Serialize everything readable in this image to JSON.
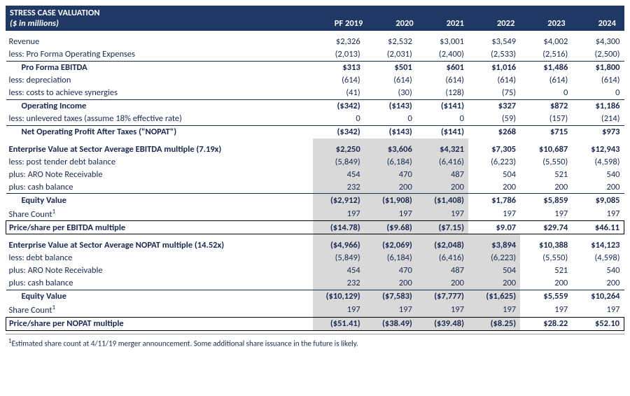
{
  "header": {
    "title": "STRESS CASE VALUATION",
    "subtitle": "($ in millions)",
    "columns": [
      "PF 2019",
      "2020",
      "2021",
      "2022",
      "2023",
      "2024"
    ]
  },
  "rows": [
    {
      "label": "Revenue",
      "vals": [
        "$2,326",
        "$2,532",
        "$3,001",
        "$3,549",
        "$4,002",
        "$4,300"
      ],
      "cls": "section-gap"
    },
    {
      "label": "less: Pro Forma Operating Expenses",
      "vals": [
        "(2,013)",
        "(2,031)",
        "(2,400)",
        "(2,533)",
        "(2,516)",
        "(2,500)"
      ]
    },
    {
      "label": "Pro Forma EBITDA",
      "vals": [
        "$313",
        "$501",
        "$601",
        "$1,016",
        "$1,486",
        "$1,800"
      ],
      "cls": "bold topline",
      "indent": true
    },
    {
      "label": "less: depreciation",
      "vals": [
        "(614)",
        "(614)",
        "(614)",
        "(614)",
        "(614)",
        "(614)"
      ]
    },
    {
      "label": "less: costs to achieve synergies",
      "vals": [
        "(41)",
        "(30)",
        "(128)",
        "(75)",
        "0",
        "0"
      ]
    },
    {
      "label": "Operating Income",
      "vals": [
        "($342)",
        "($143)",
        "($141)",
        "$327",
        "$872",
        "$1,186"
      ],
      "cls": "bold topline",
      "indent": true
    },
    {
      "label": "less: unlevered taxes (assume 18% effective rate)",
      "vals": [
        "0",
        "0",
        "0",
        "(59)",
        "(157)",
        "(214)"
      ]
    },
    {
      "label": "Net Operating Profit After Taxes (\"NOPAT\")",
      "vals": [
        "($342)",
        "($143)",
        "($141)",
        "$268",
        "$715",
        "$973"
      ],
      "cls": "bold topline",
      "indent": true
    },
    {
      "label": "Enterprise Value at Sector Average EBITDA multiple (7.19x)",
      "vals": [
        "$2,250",
        "$3,606",
        "$4,321",
        "$7,305",
        "$10,687",
        "$12,943"
      ],
      "cls": "bold section-gap",
      "hl": 3
    },
    {
      "label": "less: post tender debt balance",
      "vals": [
        "(5,849)",
        "(6,184)",
        "(6,416)",
        "(6,223)",
        "(5,550)",
        "(4,598)"
      ],
      "hl": 3
    },
    {
      "label": "plus: ARO Note Receivable",
      "vals": [
        "454",
        "470",
        "487",
        "504",
        "521",
        "540"
      ],
      "hl": 3
    },
    {
      "label": "plus: cash balance",
      "vals": [
        "232",
        "200",
        "200",
        "200",
        "200",
        "200"
      ],
      "hl": 3
    },
    {
      "label": "Equity Value",
      "vals": [
        "($2,912)",
        "($1,908)",
        "($1,408)",
        "$1,786",
        "$5,859",
        "$9,085"
      ],
      "cls": "bold topline",
      "indent": true,
      "hl": 3
    },
    {
      "label": "Share Count",
      "sup": "1",
      "vals": [
        "197",
        "197",
        "197",
        "197",
        "197",
        "197"
      ],
      "hl": 3
    },
    {
      "label": "Price/share per EBITDA multiple",
      "vals": [
        "($14.78)",
        "($9.68)",
        "($7.15)",
        "$9.07",
        "$29.74",
        "$46.11"
      ],
      "cls": "bold box",
      "hl": 3
    },
    {
      "label": "Enterprise Value at Sector Average NOPAT multiple (14.52x)",
      "vals": [
        "($4,966)",
        "($2,069)",
        "($2,048)",
        "$3,894",
        "$10,388",
        "$14,123"
      ],
      "cls": "bold section-gap",
      "hl": 4
    },
    {
      "label": "less: debt balance",
      "vals": [
        "(5,849)",
        "(6,184)",
        "(6,416)",
        "(6,223)",
        "(5,550)",
        "(4,598)"
      ],
      "hl": 4
    },
    {
      "label": "plus: ARO Note Receivable",
      "vals": [
        "454",
        "470",
        "487",
        "504",
        "521",
        "540"
      ],
      "hl": 4
    },
    {
      "label": "plus: cash balance",
      "vals": [
        "232",
        "200",
        "200",
        "200",
        "200",
        "200"
      ],
      "hl": 4
    },
    {
      "label": "Equity Value",
      "vals": [
        "($10,129)",
        "($7,583)",
        "($7,777)",
        "($1,625)",
        "$5,559",
        "$10,264"
      ],
      "cls": "bold topline",
      "indent": true,
      "hl": 4
    },
    {
      "label": "Share Count",
      "sup": "1",
      "vals": [
        "197",
        "197",
        "197",
        "197",
        "197",
        "197"
      ],
      "hl": 4
    },
    {
      "label": "Price/share per NOPAT multiple",
      "vals": [
        "($51.41)",
        "($38.49)",
        "($39.48)",
        "($8.25)",
        "$28.22",
        "$52.10"
      ],
      "cls": "bold box",
      "hl": 4
    }
  ],
  "footnote": {
    "marker": "1",
    "text": "Estimated share count at 4/11/19 merger announcement.  Some additional share issuance in the future is likely."
  }
}
